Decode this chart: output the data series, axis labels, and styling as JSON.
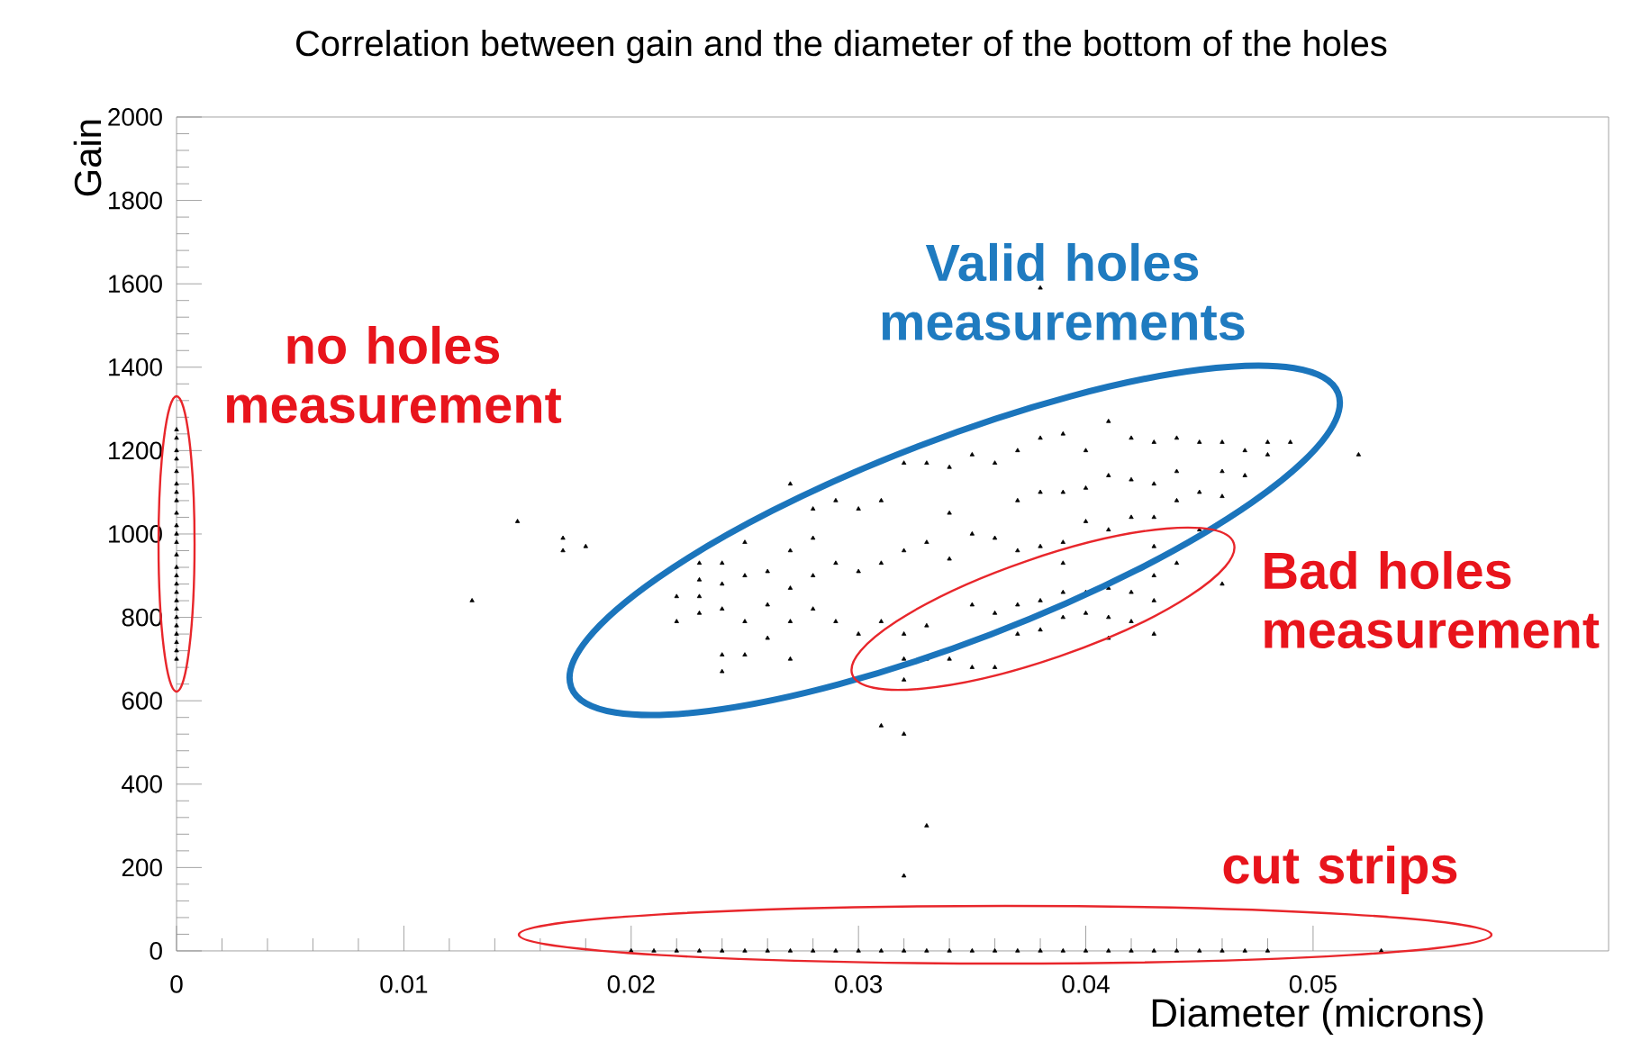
{
  "chart_data": {
    "type": "scatter",
    "title": "Correlation between gain and the diameter of the bottom of the holes",
    "xlabel": "Diameter (microns)",
    "ylabel": "Gain",
    "color": "#000000",
    "marker": "triangle",
    "grid": false,
    "xlim": [
      0,
      0.063
    ],
    "ylim": [
      0,
      2000
    ],
    "xticks": [
      0,
      0.01,
      0.02,
      0.03,
      0.04,
      0.05
    ],
    "yticks": [
      0,
      200,
      400,
      600,
      800,
      1000,
      1200,
      1400,
      1600,
      1800,
      2000
    ],
    "x": [
      0,
      0,
      0,
      0,
      0,
      0,
      0,
      0,
      0,
      0,
      0,
      0,
      0,
      0,
      0,
      0,
      0,
      0,
      0,
      0,
      0,
      0,
      0,
      0,
      0,
      0.013,
      0.015,
      0.017,
      0.017,
      0.018,
      0.022,
      0.022,
      0.023,
      0.023,
      0.023,
      0.023,
      0.024,
      0.024,
      0.024,
      0.024,
      0.024,
      0.025,
      0.025,
      0.025,
      0.025,
      0.026,
      0.026,
      0.026,
      0.027,
      0.027,
      0.027,
      0.027,
      0.027,
      0.028,
      0.028,
      0.028,
      0.028,
      0.029,
      0.029,
      0.029,
      0.03,
      0.03,
      0.03,
      0.031,
      0.031,
      0.031,
      0.031,
      0.032,
      0.032,
      0.032,
      0.032,
      0.032,
      0.032,
      0.032,
      0.033,
      0.033,
      0.033,
      0.033,
      0.033,
      0.034,
      0.034,
      0.034,
      0.034,
      0.035,
      0.035,
      0.035,
      0.035,
      0.036,
      0.036,
      0.036,
      0.036,
      0.037,
      0.037,
      0.037,
      0.037,
      0.037,
      0.038,
      0.038,
      0.038,
      0.038,
      0.038,
      0.038,
      0.039,
      0.039,
      0.039,
      0.039,
      0.039,
      0.039,
      0.04,
      0.04,
      0.04,
      0.04,
      0.04,
      0.041,
      0.041,
      0.041,
      0.041,
      0.041,
      0.041,
      0.042,
      0.042,
      0.042,
      0.042,
      0.042,
      0.043,
      0.043,
      0.043,
      0.043,
      0.043,
      0.043,
      0.043,
      0.044,
      0.044,
      0.044,
      0.044,
      0.045,
      0.045,
      0.045,
      0.046,
      0.046,
      0.046,
      0.046,
      0.047,
      0.047,
      0.048,
      0.048,
      0.049,
      0.052,
      0.02,
      0.021,
      0.022,
      0.023,
      0.024,
      0.025,
      0.026,
      0.027,
      0.028,
      0.029,
      0.03,
      0.031,
      0.032,
      0.033,
      0.034,
      0.035,
      0.036,
      0.037,
      0.038,
      0.039,
      0.04,
      0.041,
      0.042,
      0.043,
      0.044,
      0.045,
      0.046,
      0.047,
      0.048,
      0.053
    ],
    "values": [
      1250,
      1230,
      1200,
      1180,
      1150,
      1120,
      1100,
      1080,
      1050,
      1020,
      1000,
      980,
      950,
      920,
      900,
      880,
      860,
      840,
      820,
      800,
      780,
      760,
      740,
      720,
      700,
      840,
      1030,
      990,
      960,
      970,
      850,
      790,
      930,
      890,
      850,
      810,
      930,
      880,
      820,
      710,
      670,
      980,
      900,
      790,
      710,
      910,
      830,
      750,
      1120,
      960,
      870,
      790,
      700,
      1060,
      990,
      900,
      820,
      1080,
      930,
      790,
      1060,
      910,
      760,
      1080,
      930,
      790,
      540,
      1170,
      960,
      760,
      700,
      650,
      520,
      180,
      1170,
      980,
      780,
      700,
      300,
      1160,
      1050,
      940,
      700,
      1190,
      1000,
      830,
      680,
      1170,
      990,
      810,
      680,
      1200,
      1080,
      960,
      830,
      760,
      1230,
      1100,
      970,
      840,
      770,
      1590,
      1240,
      1100,
      980,
      930,
      860,
      800,
      1200,
      1110,
      1030,
      860,
      810,
      1270,
      1140,
      1010,
      870,
      800,
      750,
      1230,
      1130,
      1040,
      860,
      790,
      1220,
      1120,
      1040,
      970,
      900,
      840,
      760,
      1230,
      1150,
      1080,
      930,
      1220,
      1100,
      1010,
      1220,
      1150,
      1090,
      880,
      1200,
      1140,
      1220,
      1190,
      1220,
      1190,
      0,
      0,
      0,
      0,
      0,
      0,
      0,
      0,
      0,
      0,
      0,
      0,
      0,
      0,
      0,
      0,
      0,
      0,
      0,
      0,
      0,
      0,
      0,
      0,
      0,
      0,
      0,
      0,
      0,
      0
    ],
    "annotations": [
      "no holes measurement",
      "Valid holes measurements",
      "Bad holes measurement",
      "cut strips"
    ]
  }
}
